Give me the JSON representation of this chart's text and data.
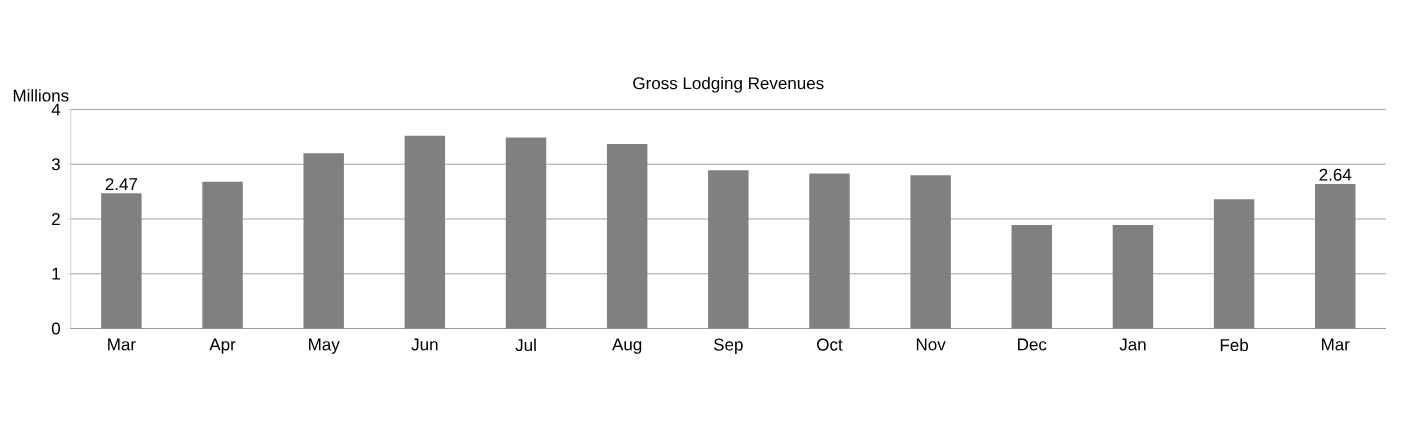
{
  "chart_data": {
    "type": "bar",
    "title": "Gross Lodging Revenues",
    "ylabel": "Millions",
    "categories": [
      "Mar",
      "Apr",
      "May",
      "Jun",
      "Jul",
      "Aug",
      "Sep",
      "Oct",
      "Nov",
      "Dec",
      "Jan",
      "Feb",
      "Mar"
    ],
    "values": [
      2.47,
      2.68,
      3.2,
      3.52,
      3.49,
      3.37,
      2.89,
      2.83,
      2.8,
      1.89,
      1.89,
      2.36,
      2.64
    ],
    "value_labels": [
      "2.47",
      null,
      null,
      null,
      null,
      null,
      null,
      null,
      null,
      null,
      null,
      null,
      "2.64"
    ],
    "color": "#808080",
    "ylim": [
      0,
      4
    ],
    "yticks": [
      0,
      1,
      2,
      3,
      4
    ],
    "grid": "y"
  }
}
